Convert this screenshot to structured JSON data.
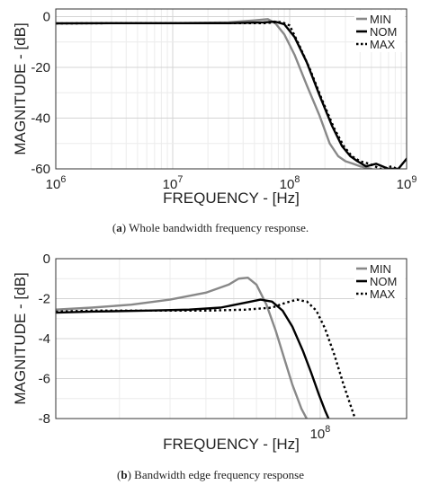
{
  "chart_data": [
    {
      "type": "line",
      "xscale": "log",
      "xlabel": "FREQUENCY - [Hz]",
      "ylabel": "MAGNITUDE - [dB]",
      "xlim": [
        1000000,
        1000000000
      ],
      "ylim": [
        -60,
        3
      ],
      "x_ticks": [
        {
          "value": 1000000,
          "base": "10",
          "exp": "6"
        },
        {
          "value": 10000000,
          "base": "10",
          "exp": "7"
        },
        {
          "value": 100000000,
          "base": "10",
          "exp": "8"
        },
        {
          "value": 1000000000,
          "base": "10",
          "exp": "9"
        }
      ],
      "y_ticks": [
        0,
        -20,
        -40,
        -60
      ],
      "grid": true,
      "legend": "top-right",
      "caption_label": "a",
      "caption_text": "Whole bandwidth frequency response.",
      "series": [
        {
          "name": "MIN",
          "color": "#888888",
          "style": "solid",
          "x": [
            1000000,
            3000000,
            10000000,
            30000000,
            50000000,
            65000000,
            75000000,
            90000000,
            110000000,
            140000000,
            180000000,
            220000000,
            260000000,
            300000000,
            350000000,
            400000000,
            500000000
          ],
          "y": [
            -2.6,
            -2.6,
            -2.6,
            -2.3,
            -1.5,
            -1.0,
            -2.5,
            -7,
            -15,
            -27,
            -39,
            -50,
            -55,
            -57,
            -58,
            -59,
            -60
          ]
        },
        {
          "name": "NOM",
          "color": "#000000",
          "style": "solid",
          "x": [
            1000000,
            3000000,
            10000000,
            30000000,
            60000000,
            75000000,
            90000000,
            110000000,
            140000000,
            180000000,
            230000000,
            280000000,
            330000000,
            380000000,
            450000000,
            550000000,
            700000000,
            850000000,
            1000000000
          ],
          "y": [
            -2.7,
            -2.6,
            -2.6,
            -2.6,
            -2.3,
            -2.0,
            -3.0,
            -8,
            -18,
            -31,
            -43,
            -51,
            -55,
            -57,
            -59,
            -58,
            -60,
            -60,
            -56
          ]
        },
        {
          "name": "MAX",
          "color": "#000000",
          "style": "dotted",
          "x": [
            1000000,
            3000000,
            10000000,
            30000000,
            60000000,
            85000000,
            100000000,
            120000000,
            150000000,
            190000000,
            240000000,
            290000000,
            340000000,
            400000000,
            480000000,
            600000000,
            750000000,
            900000000
          ],
          "y": [
            -2.7,
            -2.6,
            -2.6,
            -2.6,
            -2.6,
            -2.1,
            -3.5,
            -11,
            -21,
            -33,
            -44,
            -51,
            -55,
            -57,
            -58,
            -60,
            -59,
            -61
          ]
        }
      ]
    },
    {
      "type": "line",
      "xscale": "log",
      "xlabel": "FREQUENCY - [Hz]",
      "ylabel": "MAGNITUDE - [dB]",
      "xlim": [
        12000000,
        200000000
      ],
      "ylim": [
        -8,
        0
      ],
      "x_ticks": [
        {
          "value": 100000000,
          "base": "10",
          "exp": "8"
        }
      ],
      "y_ticks": [
        0,
        -2,
        -4,
        -6,
        -8
      ],
      "grid": true,
      "legend": "top-right",
      "caption_label": "b",
      "caption_text": "Bandwidth edge frequency response",
      "series": [
        {
          "name": "MIN",
          "color": "#888888",
          "style": "solid",
          "x": [
            12000000,
            16000000,
            22000000,
            30000000,
            40000000,
            48000000,
            52000000,
            56000000,
            60000000,
            65000000,
            70000000,
            75000000,
            80000000,
            86000000,
            92000000
          ],
          "y": [
            -2.55,
            -2.45,
            -2.3,
            -2.05,
            -1.7,
            -1.3,
            -1.0,
            -0.95,
            -1.3,
            -2.3,
            -3.6,
            -5.0,
            -6.3,
            -7.5,
            -8.3
          ]
        },
        {
          "name": "NOM",
          "color": "#000000",
          "style": "solid",
          "x": [
            12000000,
            16000000,
            25000000,
            35000000,
            45000000,
            55000000,
            62000000,
            68000000,
            74000000,
            80000000,
            87000000,
            93000000,
            99000000,
            104000000,
            110000000
          ],
          "y": [
            -2.7,
            -2.65,
            -2.6,
            -2.55,
            -2.45,
            -2.2,
            -2.05,
            -2.15,
            -2.6,
            -3.4,
            -4.6,
            -5.7,
            -6.8,
            -7.6,
            -8.4
          ]
        },
        {
          "name": "MAX",
          "color": "#000000",
          "style": "dotted",
          "x": [
            12000000,
            16000000,
            25000000,
            40000000,
            55000000,
            68000000,
            76000000,
            83000000,
            90000000,
            97000000,
            104000000,
            112000000,
            120000000,
            128000000,
            136000000
          ],
          "y": [
            -2.65,
            -2.6,
            -2.6,
            -2.6,
            -2.55,
            -2.45,
            -2.2,
            -2.05,
            -2.15,
            -2.6,
            -3.5,
            -4.8,
            -6.2,
            -7.4,
            -8.5
          ]
        }
      ]
    }
  ]
}
